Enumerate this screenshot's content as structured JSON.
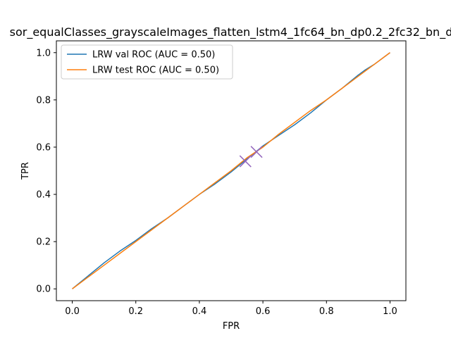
{
  "chart_data": {
    "type": "line",
    "title": "sor_equalClasses_grayscaleImages_flatten_lstm4_1fc64_bn_dp0.2_2fc32_bn_d",
    "xlabel": "FPR",
    "ylabel": "TPR",
    "xlim": [
      -0.05,
      1.05
    ],
    "ylim": [
      -0.05,
      1.05
    ],
    "xticks": [
      "0.0",
      "0.2",
      "0.4",
      "0.6",
      "0.8",
      "1.0"
    ],
    "yticks": [
      "0.0",
      "0.2",
      "0.4",
      "0.6",
      "0.8",
      "1.0"
    ],
    "grid": false,
    "legend_position": "upper-left",
    "series": [
      {
        "name": "LRW val ROC (AUC = 0.50)",
        "color": "#1f77b4",
        "x": [
          0.0,
          0.05,
          0.1,
          0.15,
          0.2,
          0.25,
          0.3,
          0.35,
          0.4,
          0.45,
          0.5,
          0.55,
          0.6,
          0.65,
          0.7,
          0.75,
          0.8,
          0.85,
          0.9,
          0.92,
          0.95,
          1.0
        ],
        "y": [
          0.0,
          0.055,
          0.11,
          0.16,
          0.205,
          0.255,
          0.3,
          0.35,
          0.4,
          0.445,
          0.495,
          0.55,
          0.605,
          0.65,
          0.695,
          0.745,
          0.8,
          0.85,
          0.905,
          0.925,
          0.95,
          1.0
        ]
      },
      {
        "name": "LRW test ROC (AUC = 0.50)",
        "color": "#ff7f0e",
        "x": [
          0.0,
          0.05,
          0.1,
          0.15,
          0.2,
          0.25,
          0.3,
          0.35,
          0.4,
          0.45,
          0.5,
          0.55,
          0.6,
          0.65,
          0.7,
          0.75,
          0.8,
          0.85,
          0.9,
          0.95,
          1.0
        ],
        "y": [
          0.0,
          0.05,
          0.1,
          0.15,
          0.2,
          0.25,
          0.3,
          0.35,
          0.4,
          0.45,
          0.5,
          0.555,
          0.6,
          0.655,
          0.705,
          0.755,
          0.8,
          0.85,
          0.9,
          0.95,
          1.0
        ]
      }
    ],
    "markers": [
      {
        "x": 0.545,
        "y": 0.54,
        "color": "#9467bd",
        "shape": "x"
      },
      {
        "x": 0.58,
        "y": 0.58,
        "color": "#9467bd",
        "shape": "x"
      }
    ]
  }
}
